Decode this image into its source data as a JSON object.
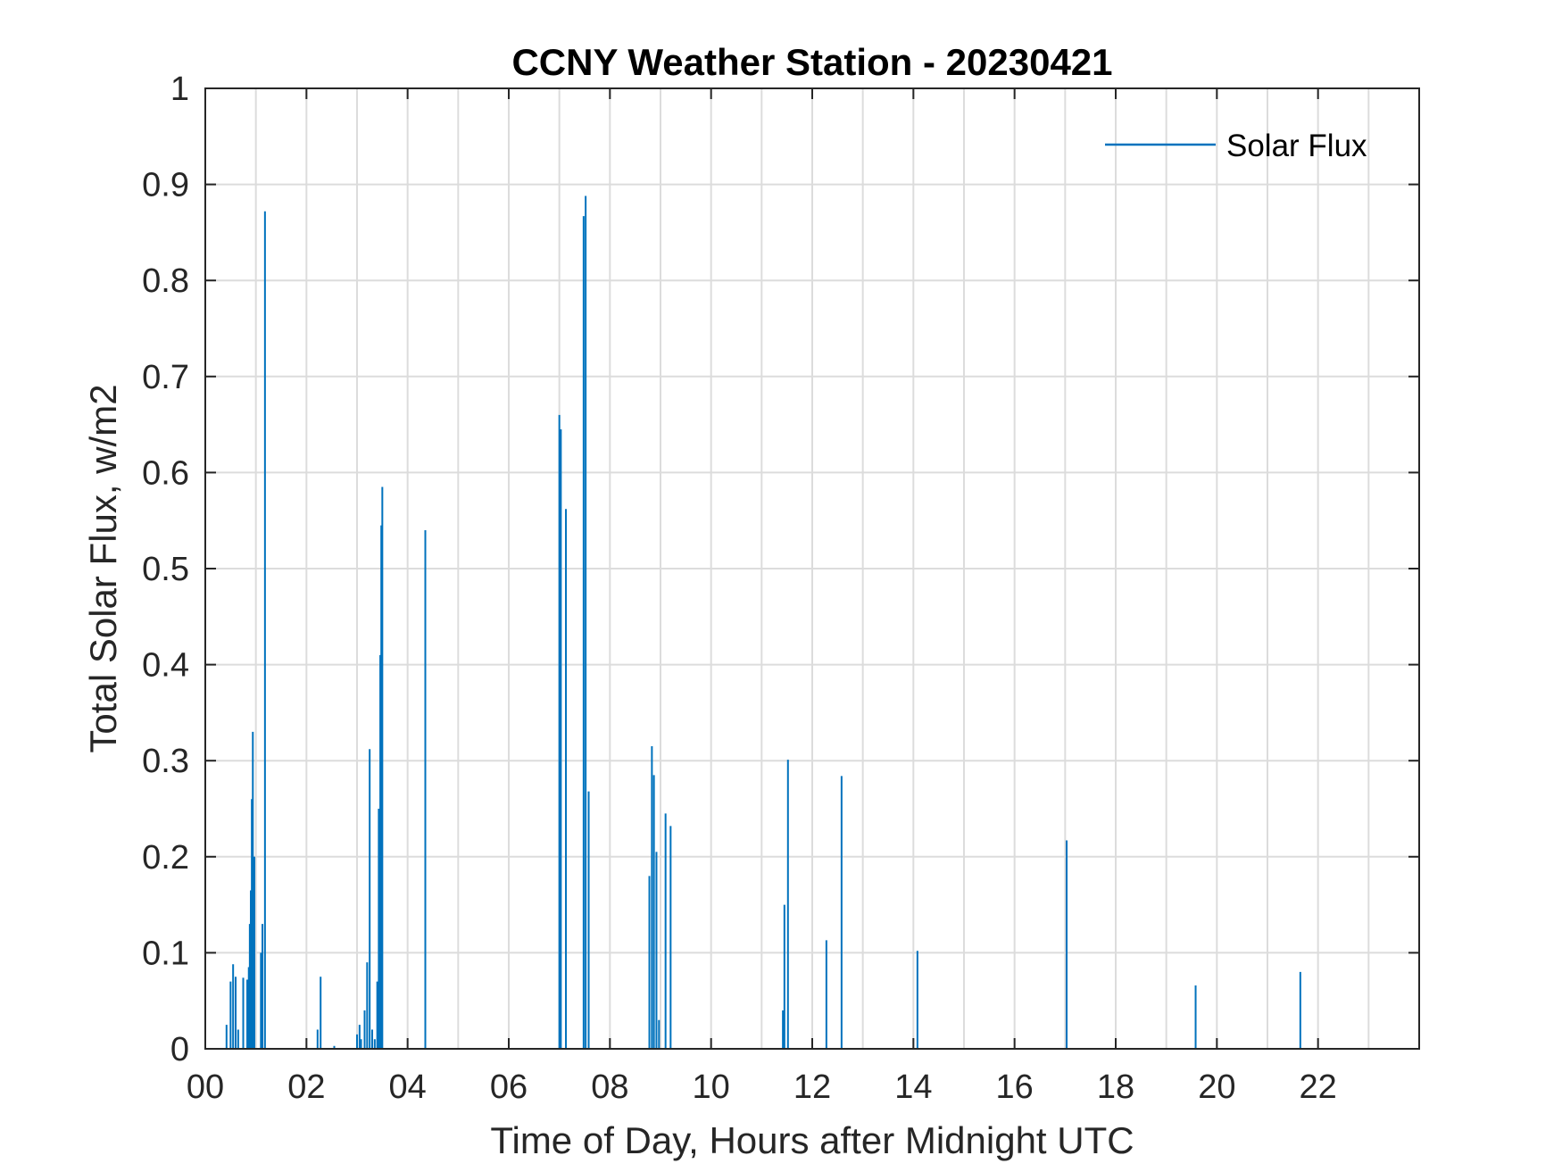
{
  "chart_data": {
    "type": "line",
    "title": "CCNY Weather Station - 20230421",
    "xlabel": "Time of Day, Hours after Midnight UTC",
    "ylabel": "Total Solar Flux, w/m2",
    "xlim": [
      0,
      24
    ],
    "ylim": [
      0,
      1
    ],
    "grid": true,
    "legend_position": "top-right",
    "x_ticks": [
      0,
      2,
      4,
      6,
      8,
      10,
      12,
      14,
      16,
      18,
      20,
      22
    ],
    "x_tick_labels": [
      "00",
      "02",
      "04",
      "06",
      "08",
      "10",
      "12",
      "14",
      "16",
      "18",
      "20",
      "22"
    ],
    "y_ticks": [
      0,
      0.1,
      0.2,
      0.3,
      0.4,
      0.5,
      0.6,
      0.7,
      0.8,
      0.9,
      1
    ],
    "y_tick_labels": [
      "0",
      "0.1",
      "0.2",
      "0.3",
      "0.4",
      "0.5",
      "0.6",
      "0.7",
      "0.8",
      "0.9",
      "1"
    ],
    "series": [
      {
        "name": "Solar Flux",
        "color": "#0072BD",
        "spikes": [
          {
            "x": 0.42,
            "y": 0.025
          },
          {
            "x": 0.5,
            "y": 0.07
          },
          {
            "x": 0.55,
            "y": 0.088
          },
          {
            "x": 0.6,
            "y": 0.075
          },
          {
            "x": 0.65,
            "y": 0.02
          },
          {
            "x": 0.75,
            "y": 0.074
          },
          {
            "x": 0.83,
            "y": 0.072
          },
          {
            "x": 0.86,
            "y": 0.085
          },
          {
            "x": 0.88,
            "y": 0.13
          },
          {
            "x": 0.9,
            "y": 0.165
          },
          {
            "x": 0.92,
            "y": 0.26
          },
          {
            "x": 0.94,
            "y": 0.33
          },
          {
            "x": 0.97,
            "y": 0.2
          },
          {
            "x": 1.1,
            "y": 0.1
          },
          {
            "x": 1.13,
            "y": 0.13
          },
          {
            "x": 1.18,
            "y": 0.872
          },
          {
            "x": 2.22,
            "y": 0.02
          },
          {
            "x": 2.28,
            "y": 0.075
          },
          {
            "x": 2.55,
            "y": 0.003
          },
          {
            "x": 3.0,
            "y": 0.015
          },
          {
            "x": 3.05,
            "y": 0.025
          },
          {
            "x": 3.08,
            "y": 0.01
          },
          {
            "x": 3.15,
            "y": 0.04
          },
          {
            "x": 3.2,
            "y": 0.09
          },
          {
            "x": 3.25,
            "y": 0.312
          },
          {
            "x": 3.3,
            "y": 0.02
          },
          {
            "x": 3.35,
            "y": 0.01
          },
          {
            "x": 3.4,
            "y": 0.07
          },
          {
            "x": 3.43,
            "y": 0.25
          },
          {
            "x": 3.46,
            "y": 0.41
          },
          {
            "x": 3.48,
            "y": 0.545
          },
          {
            "x": 3.5,
            "y": 0.585
          },
          {
            "x": 4.35,
            "y": 0.54
          },
          {
            "x": 7.0,
            "y": 0.66
          },
          {
            "x": 7.03,
            "y": 0.645
          },
          {
            "x": 7.13,
            "y": 0.562
          },
          {
            "x": 7.48,
            "y": 0.867
          },
          {
            "x": 7.52,
            "y": 0.888
          },
          {
            "x": 7.58,
            "y": 0.268
          },
          {
            "x": 8.78,
            "y": 0.18
          },
          {
            "x": 8.83,
            "y": 0.315
          },
          {
            "x": 8.87,
            "y": 0.285
          },
          {
            "x": 8.92,
            "y": 0.205
          },
          {
            "x": 8.97,
            "y": 0.03
          },
          {
            "x": 9.1,
            "y": 0.245
          },
          {
            "x": 9.2,
            "y": 0.232
          },
          {
            "x": 11.42,
            "y": 0.04
          },
          {
            "x": 11.45,
            "y": 0.15
          },
          {
            "x": 11.52,
            "y": 0.301
          },
          {
            "x": 12.28,
            "y": 0.113
          },
          {
            "x": 12.58,
            "y": 0.284
          },
          {
            "x": 14.08,
            "y": 0.102
          },
          {
            "x": 17.03,
            "y": 0.217
          },
          {
            "x": 19.58,
            "y": 0.066
          },
          {
            "x": 21.65,
            "y": 0.08
          }
        ]
      }
    ]
  }
}
